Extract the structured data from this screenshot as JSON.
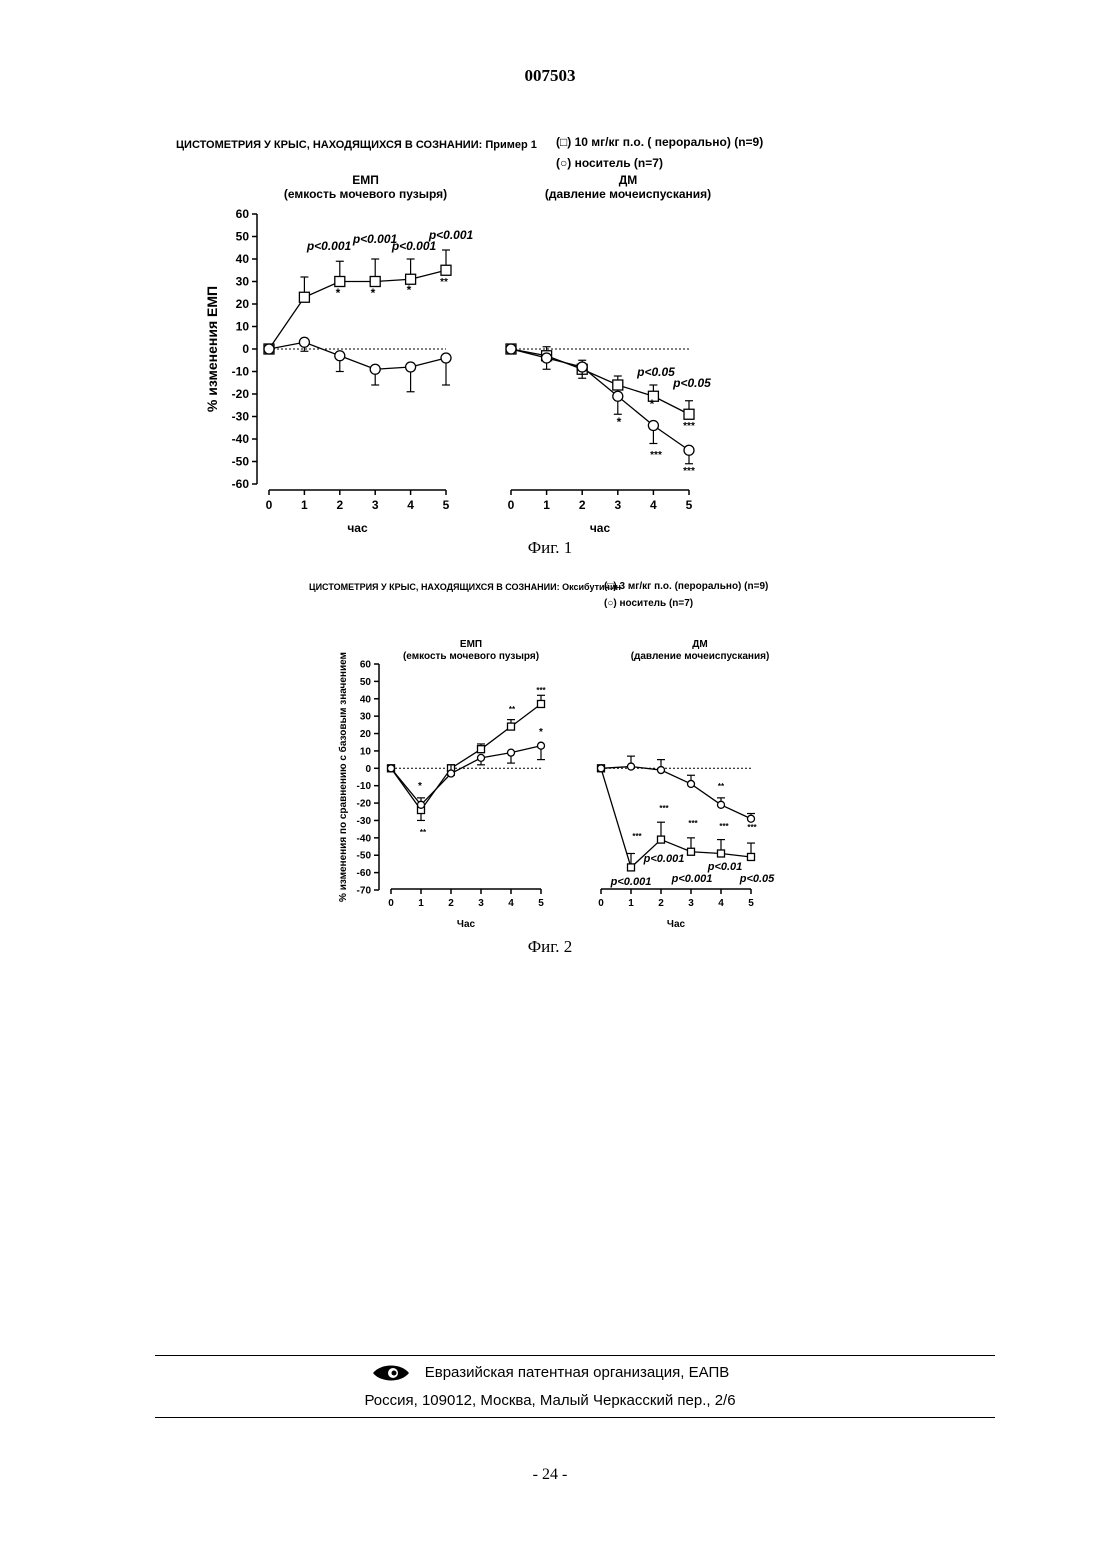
{
  "header": {
    "doc_number": "007503"
  },
  "figure1": {
    "title": "ЦИСТОМЕТРИЯ У КРЫС, НАХОДЯЩИХСЯ В СОЗНАНИИ: Пример 1",
    "legend": [
      "(□) 10 мг/кг п.о. ( перорально) (n=9)",
      "(○) носитель (n=7)"
    ],
    "caption": "Фиг. 1",
    "ylabel": "% изменения ЕМП",
    "yticks": [
      60,
      50,
      40,
      30,
      20,
      10,
      0,
      -10,
      -20,
      -30,
      -40,
      -50,
      -60
    ],
    "panels": [
      {
        "title": "ЕМП",
        "subtitle": "(емкость мочевого пузыря)",
        "xlabel": "час",
        "xticks": [
          0,
          1,
          2,
          3,
          4,
          5
        ]
      },
      {
        "title": "ДМ",
        "subtitle": "(давление мочеиспускания)",
        "xlabel": "час",
        "xticks": [
          0,
          1,
          2,
          3,
          4,
          5
        ]
      }
    ],
    "annotations": {
      "p_labels": [
        "p<0.001",
        "p<0.001",
        "p<0.001",
        "p<0.001",
        "p<0.05",
        "p<0.05"
      ],
      "stars": [
        "*",
        "*",
        "*",
        "**",
        "*",
        "*",
        "***",
        "***",
        "***"
      ]
    }
  },
  "figure2": {
    "title": "ЦИСТОМЕТРИЯ У КРЫС, НАХОДЯЩИХСЯ В СОЗНАНИИ: Оксибутинин",
    "legend": [
      "(□) 3 мг/кг п.о. (перорально) (n=9)",
      "(○) носитель (n=7)"
    ],
    "caption": "Фиг. 2",
    "ylabel": "% изменения по сравнению с базовым значением",
    "yticks": [
      60,
      50,
      40,
      30,
      20,
      10,
      0,
      -10,
      -20,
      -30,
      -40,
      -50,
      -60,
      -70
    ],
    "panels": [
      {
        "title": "ЕМП",
        "subtitle": "(емкость мочевого пузыря)",
        "xlabel": "Час",
        "xticks": [
          0,
          1,
          2,
          3,
          4,
          5
        ]
      },
      {
        "title": "ДМ",
        "subtitle": "(давление мочеиспускания)",
        "xlabel": "Час",
        "xticks": [
          0,
          1,
          2,
          3,
          4,
          5
        ]
      }
    ],
    "annotations": {
      "p_labels": [
        "p<0.001",
        "p<0.001",
        "p<0.001",
        "p<0.01",
        "p<0.05"
      ],
      "stars": [
        "*",
        "**",
        "**",
        "***",
        "*",
        "***",
        "***",
        "***",
        "***",
        "**",
        "***"
      ]
    }
  },
  "chart_data": [
    {
      "type": "line",
      "title": "ЕМП",
      "xlabel": "час",
      "ylabel": "% изменения ЕМП",
      "ylim": [
        -60,
        60
      ],
      "x": [
        0,
        1,
        2,
        3,
        4,
        5
      ],
      "series": [
        {
          "name": "10 мг/кг п.о. ( перорально) (n=9)",
          "values": [
            0,
            23,
            30,
            30,
            31,
            35
          ],
          "err": [
            0,
            9,
            9,
            10,
            9,
            9
          ]
        },
        {
          "name": "носитель (n=7)",
          "values": [
            0,
            3,
            -3,
            -9,
            -8,
            -4
          ],
          "err": [
            0,
            4,
            7,
            7,
            11,
            12
          ]
        }
      ]
    },
    {
      "type": "line",
      "title": "ДМ",
      "xlabel": "час",
      "ylim": [
        -60,
        60
      ],
      "x": [
        0,
        1,
        2,
        3,
        4,
        5
      ],
      "series": [
        {
          "name": "10 мг/кг п.о. ( перорально) (n=9)",
          "values": [
            0,
            -3,
            -9,
            -16,
            -21,
            -29
          ],
          "err": [
            0,
            4,
            4,
            4,
            5,
            6
          ]
        },
        {
          "name": "носитель (n=7)",
          "values": [
            0,
            -4,
            -8,
            -21,
            -34,
            -45
          ],
          "err": [
            0,
            5,
            5,
            8,
            8,
            6
          ]
        }
      ]
    },
    {
      "type": "line",
      "title": "ЕМП",
      "xlabel": "Час",
      "ylabel": "% изменения по сравнению с базовым значением",
      "ylim": [
        -70,
        60
      ],
      "x": [
        0,
        1,
        2,
        3,
        4,
        5
      ],
      "series": [
        {
          "name": "3 мг/кг п.о. (перорально) (n=9)",
          "values": [
            0,
            -24,
            0,
            11,
            24,
            37
          ],
          "err": [
            0,
            6,
            4,
            3,
            4,
            5
          ]
        },
        {
          "name": "носитель (n=7)",
          "values": [
            0,
            -21,
            -3,
            6,
            9,
            13
          ],
          "err": [
            0,
            4,
            5,
            4,
            6,
            8
          ]
        }
      ]
    },
    {
      "type": "line",
      "title": "ДМ",
      "xlabel": "Час",
      "ylim": [
        -70,
        60
      ],
      "x": [
        0,
        1,
        2,
        3,
        4,
        5
      ],
      "series": [
        {
          "name": "3 мг/кг п.о. (перорально) (n=9)",
          "values": [
            0,
            -57,
            -41,
            -48,
            -49,
            -51
          ],
          "err": [
            0,
            8,
            10,
            8,
            8,
            8
          ]
        },
        {
          "name": "носитель (n=7)",
          "values": [
            0,
            1,
            -1,
            -9,
            -21,
            -29
          ],
          "err": [
            0,
            6,
            6,
            5,
            4,
            3
          ]
        }
      ]
    }
  ],
  "footer": {
    "org": "Евразийская патентная организация, ЕАПВ",
    "address": "Россия, 109012, Москва, Малый Черкасский пер., 2/6",
    "page": "- 24 -"
  }
}
